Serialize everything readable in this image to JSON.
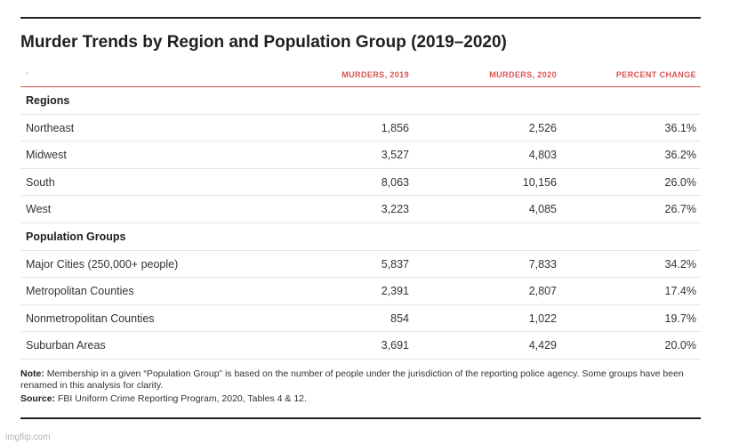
{
  "title": "Murder Trends by Region and Population Group (2019–2020)",
  "table": {
    "corner_label": "-",
    "columns": [
      "MURDERS, 2019",
      "MURDERS, 2020",
      "PERCENT CHANGE"
    ],
    "groups": [
      {
        "name": "Regions",
        "rows": [
          {
            "label": "Northeast",
            "m2019": "1,856",
            "m2020": "2,526",
            "change": "36.1%"
          },
          {
            "label": "Midwest",
            "m2019": "3,527",
            "m2020": "4,803",
            "change": "36.2%"
          },
          {
            "label": "South",
            "m2019": "8,063",
            "m2020": "10,156",
            "change": "26.0%"
          },
          {
            "label": "West",
            "m2019": "3,223",
            "m2020": "4,085",
            "change": "26.7%"
          }
        ]
      },
      {
        "name": "Population Groups",
        "rows": [
          {
            "label": "Major Cities (250,000+ people)",
            "m2019": "5,837",
            "m2020": "7,833",
            "change": "34.2%"
          },
          {
            "label": "Metropolitan Counties",
            "m2019": "2,391",
            "m2020": "2,807",
            "change": "17.4%"
          },
          {
            "label": "Nonmetropolitan Counties",
            "m2019": "854",
            "m2020": "1,022",
            "change": "19.7%"
          },
          {
            "label": "Suburban Areas",
            "m2019": "3,691",
            "m2020": "4,429",
            "change": "20.0%"
          }
        ]
      }
    ]
  },
  "note": {
    "label": "Note:",
    "text": "Membership in a given “Population Group” is based on the number of people under the jurisdiction of the reporting police agency. Some groups have been renamed in this analysis for clarity."
  },
  "source": {
    "label": "Source:",
    "text": "FBI Uniform Crime Reporting Program, 2020, Tables 4 & 12."
  },
  "watermark": "imgflip.com",
  "colors": {
    "accent": "#d9534f",
    "text": "#333333",
    "rule": "#222222"
  }
}
